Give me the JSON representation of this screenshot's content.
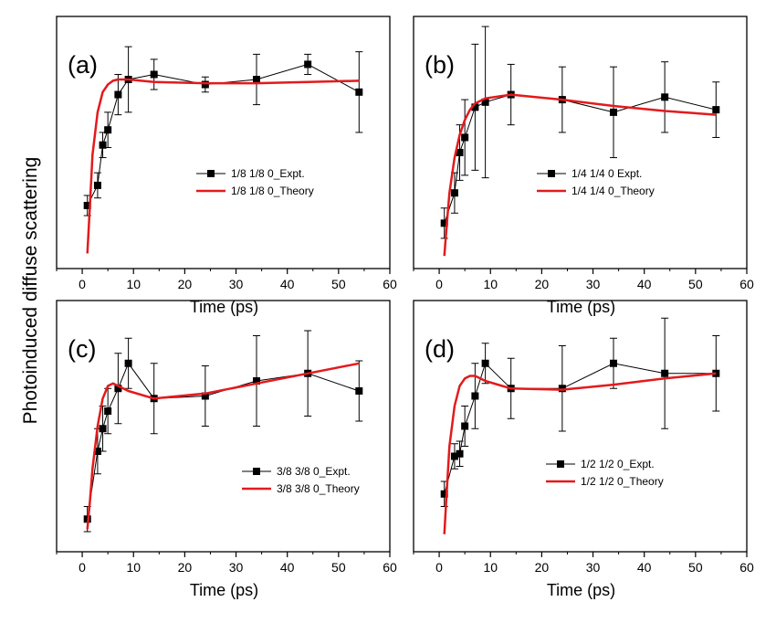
{
  "figure": {
    "ylabel": "Photoinduced diffuse scattering"
  },
  "chart_data": [
    {
      "type": "line",
      "panel_label": "(a)",
      "xlabel": "Time (ps)",
      "xlim": [
        -5,
        60
      ],
      "xticks": [
        0,
        10,
        20,
        30,
        40,
        50,
        60
      ],
      "ylim": [
        0,
        1
      ],
      "legend_placement": "center-right",
      "series": [
        {
          "name": "1/8 1/8 0_Expt.",
          "color": "#000000",
          "marker": "square",
          "x": [
            1,
            3,
            4,
            5,
            7,
            9,
            14,
            24,
            34,
            44,
            54
          ],
          "y": [
            0.25,
            0.33,
            0.49,
            0.55,
            0.69,
            0.75,
            0.77,
            0.73,
            0.75,
            0.81,
            0.7
          ],
          "err": [
            0.04,
            0.05,
            0.05,
            0.07,
            0.08,
            0.13,
            0.06,
            0.03,
            0.1,
            0.04,
            0.16
          ]
        },
        {
          "name": "1/8 1/8 0_Theory",
          "color": "#e31a1c",
          "x": [
            1,
            1.5,
            2,
            3,
            4,
            5,
            6,
            7,
            9,
            14,
            24,
            34,
            44,
            54
          ],
          "y": [
            0.06,
            0.25,
            0.45,
            0.62,
            0.7,
            0.73,
            0.745,
            0.75,
            0.75,
            0.74,
            0.735,
            0.735,
            0.74,
            0.745
          ]
        }
      ]
    },
    {
      "type": "line",
      "panel_label": "(b)",
      "xlabel": "Time (ps)",
      "xlim": [
        -5,
        60
      ],
      "xticks": [
        0,
        10,
        20,
        30,
        40,
        50,
        60
      ],
      "ylim": [
        0,
        1
      ],
      "legend_placement": "center-right",
      "series": [
        {
          "name": "1/4 1/4 0 Expt.",
          "color": "#000000",
          "marker": "square",
          "x": [
            1,
            3,
            4,
            5,
            7,
            9,
            14,
            24,
            34,
            44,
            54
          ],
          "y": [
            0.18,
            0.3,
            0.46,
            0.52,
            0.64,
            0.66,
            0.69,
            0.67,
            0.62,
            0.68,
            0.63
          ],
          "err": [
            0.06,
            0.08,
            0.11,
            0.15,
            0.25,
            0.3,
            0.12,
            0.13,
            0.18,
            0.14,
            0.11
          ]
        },
        {
          "name": "1/4 1/4 0_Theory",
          "color": "#e31a1c",
          "x": [
            1,
            1.5,
            2,
            3,
            4,
            5,
            6,
            7,
            9,
            14,
            24,
            34,
            44,
            54
          ],
          "y": [
            0.05,
            0.18,
            0.3,
            0.44,
            0.53,
            0.59,
            0.63,
            0.655,
            0.675,
            0.69,
            0.67,
            0.645,
            0.625,
            0.61
          ]
        }
      ]
    },
    {
      "type": "line",
      "panel_label": "(c)",
      "xlabel": "Time (ps)",
      "xlim": [
        -5,
        60
      ],
      "xticks": [
        0,
        10,
        20,
        30,
        40,
        50,
        60
      ],
      "ylim": [
        0,
        1
      ],
      "legend_placement": "bottom-right",
      "series": [
        {
          "name": "3/8 3/8 0_Expt.",
          "color": "#000000",
          "marker": "square",
          "x": [
            1,
            3,
            4,
            5,
            7,
            9,
            14,
            24,
            34,
            44,
            54
          ],
          "y": [
            0.13,
            0.4,
            0.49,
            0.56,
            0.65,
            0.75,
            0.61,
            0.62,
            0.68,
            0.71,
            0.64
          ],
          "err": [
            0.05,
            0.09,
            0.09,
            0.09,
            0.14,
            0.1,
            0.14,
            0.12,
            0.18,
            0.17,
            0.12
          ]
        },
        {
          "name": "3/8 3/8 0_Theory",
          "color": "#e31a1c",
          "x": [
            1,
            1.5,
            2,
            3,
            4,
            5,
            6,
            7,
            9,
            14,
            24,
            34,
            44,
            54
          ],
          "y": [
            0.09,
            0.2,
            0.33,
            0.5,
            0.61,
            0.66,
            0.67,
            0.66,
            0.64,
            0.61,
            0.63,
            0.67,
            0.71,
            0.75
          ]
        }
      ]
    },
    {
      "type": "line",
      "panel_label": "(d)",
      "xlabel": "Time (ps)",
      "xlim": [
        -5,
        60
      ],
      "xticks": [
        0,
        10,
        20,
        30,
        40,
        50,
        60
      ],
      "ylim": [
        0,
        1
      ],
      "legend_placement": "bottom-right",
      "series": [
        {
          "name": "1/2 1/2 0_Expt.",
          "color": "#000000",
          "marker": "square",
          "x": [
            1,
            3,
            4,
            5,
            7,
            9,
            14,
            24,
            34,
            44,
            54
          ],
          "y": [
            0.23,
            0.38,
            0.39,
            0.5,
            0.62,
            0.75,
            0.65,
            0.65,
            0.75,
            0.71,
            0.71
          ],
          "err": [
            0.05,
            0.05,
            0.05,
            0.08,
            0.13,
            0.08,
            0.12,
            0.17,
            0.1,
            0.22,
            0.15
          ]
        },
        {
          "name": "1/2 1/2 0_Theory",
          "color": "#e31a1c",
          "x": [
            1,
            1.5,
            2,
            3,
            4,
            5,
            6,
            7,
            9,
            14,
            24,
            34,
            44,
            54
          ],
          "y": [
            0.07,
            0.25,
            0.42,
            0.58,
            0.66,
            0.69,
            0.7,
            0.7,
            0.68,
            0.65,
            0.645,
            0.665,
            0.69,
            0.71
          ]
        }
      ]
    }
  ]
}
